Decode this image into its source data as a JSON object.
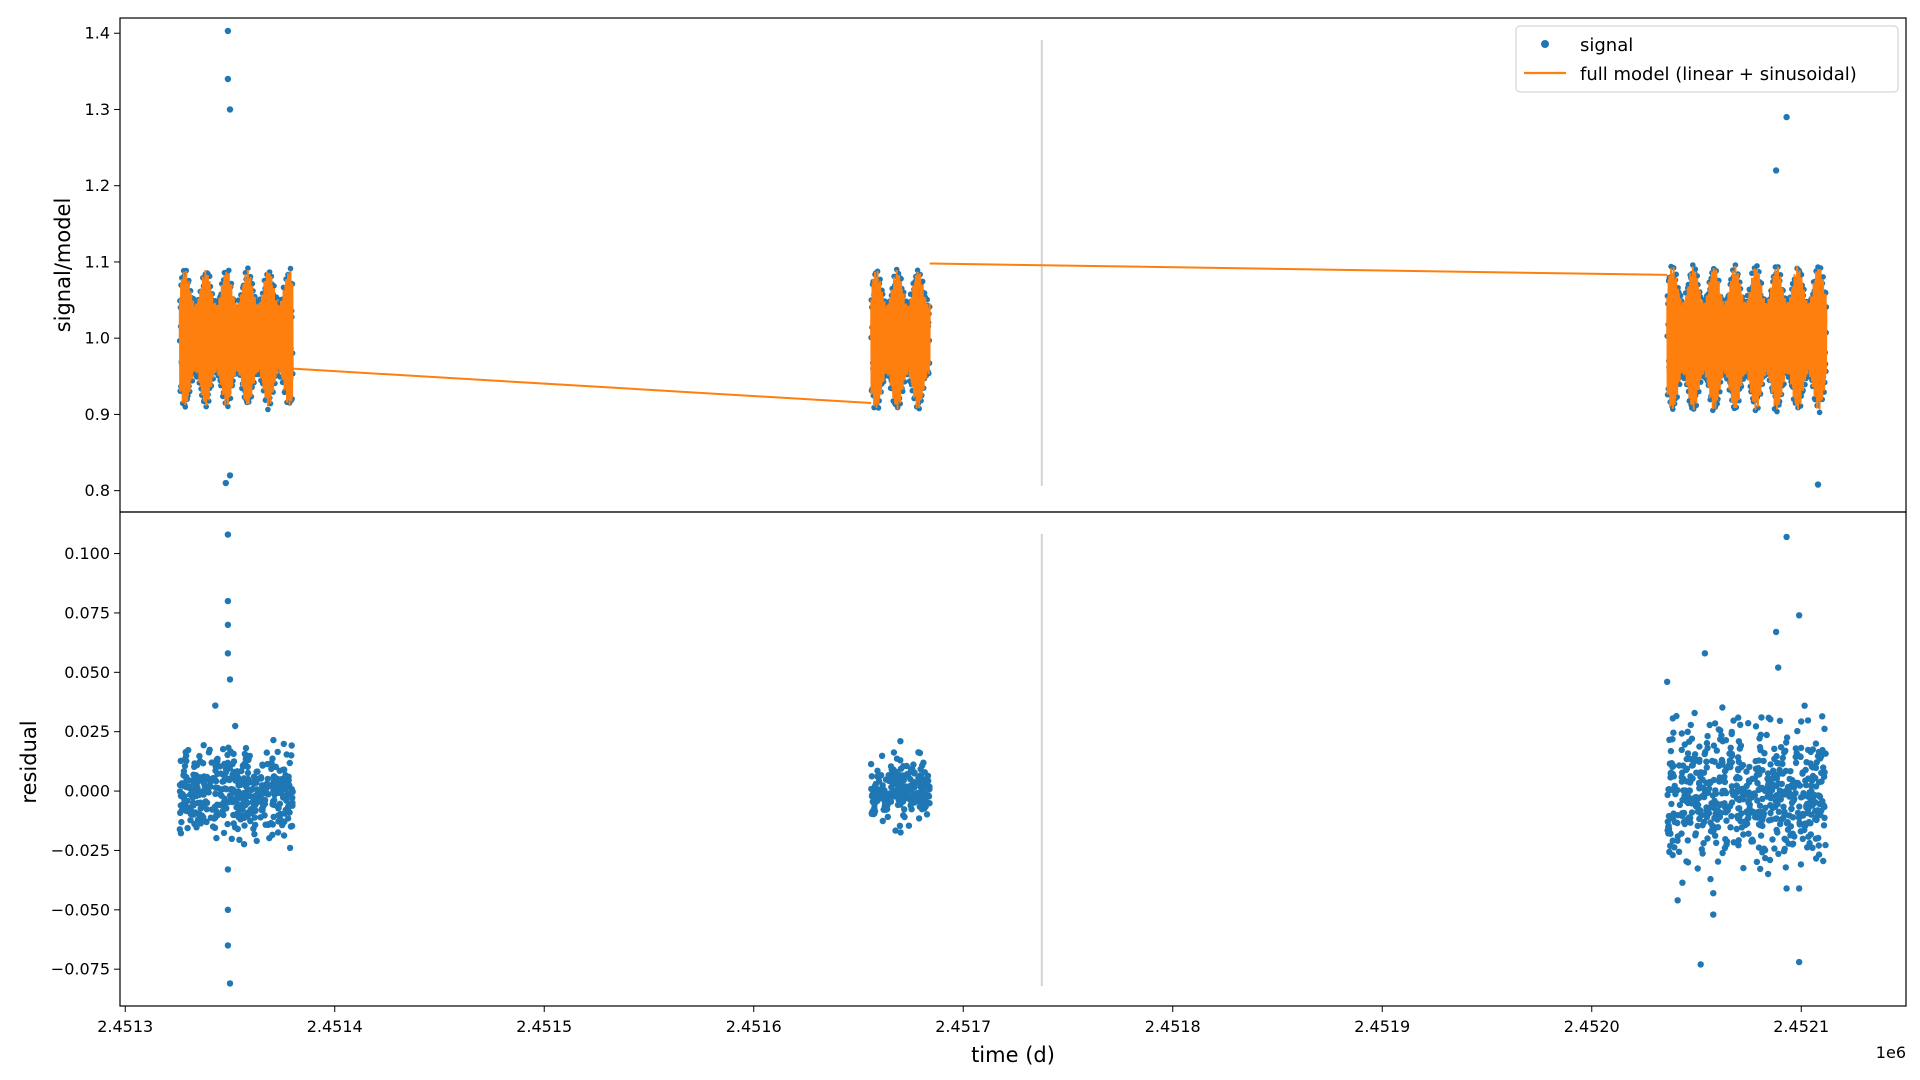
{
  "chart_data": {
    "type": "scatter",
    "figure": {
      "shared_x_label": "time (d)",
      "x_offset_label": "1e6",
      "x_ticks": [
        2451300,
        2451400,
        2451500,
        2451600,
        2451700,
        2451800,
        2451900,
        2452000,
        2452100
      ],
      "x_tick_labels": [
        "2.4513",
        "2.4514",
        "2.4515",
        "2.4516",
        "2.4517",
        "2.4518",
        "2.4519",
        "2.4520",
        "2.4521"
      ],
      "xlim": [
        2451297.5,
        2452150
      ],
      "vertical_marker_x": 2451737.5,
      "colors": {
        "signal": "#1f77b4",
        "model": "#ff7f0e",
        "marker": "#d3d3d3",
        "frame": "#000000"
      }
    },
    "panels": [
      {
        "id": "top",
        "ylabel": "signal/model",
        "ylim": [
          0.772,
          1.42
        ],
        "y_ticks": [
          0.8,
          0.9,
          1.0,
          1.1,
          1.2,
          1.3,
          1.4
        ],
        "y_tick_labels": [
          "0.8",
          "0.9",
          "1.0",
          "1.1",
          "1.2",
          "1.3",
          "1.4"
        ],
        "legend": {
          "placement": "top-right",
          "entries": [
            "signal",
            "full model (linear + sinusoidal)"
          ]
        },
        "segments": [
          {
            "x_start": 2451326,
            "x_end": 2451380,
            "center": 1.0,
            "amplitude": 0.09
          },
          {
            "x_start": 2451656,
            "x_end": 2451684,
            "center": 0.998,
            "amplitude": 0.092
          },
          {
            "x_start": 2452036,
            "x_end": 2452112,
            "center": 1.0,
            "amplitude": 0.095
          }
        ],
        "model_gap_lines": [
          {
            "x": [
              2451380,
              2451656
            ],
            "y": [
              0.96,
              0.915
            ]
          },
          {
            "x": [
              2451684,
              2452036
            ],
            "y": [
              1.098,
              1.083
            ]
          }
        ],
        "peaks": [
          {
            "x": 2451349,
            "y": 1.403
          },
          {
            "x": 2451349,
            "y": 1.34
          },
          {
            "x": 2451350,
            "y": 1.3
          },
          {
            "x": 2451348,
            "y": 0.81
          },
          {
            "x": 2451350,
            "y": 0.82
          },
          {
            "x": 2452093,
            "y": 1.29
          },
          {
            "x": 2452088,
            "y": 1.22
          },
          {
            "x": 2452108,
            "y": 0.808
          }
        ]
      },
      {
        "id": "bottom",
        "ylabel": "residual",
        "ylim": [
          -0.0905,
          0.1175
        ],
        "y_ticks": [
          -0.075,
          -0.05,
          -0.025,
          0.0,
          0.025,
          0.05,
          0.075,
          0.1
        ],
        "y_tick_labels": [
          "−0.075",
          "−0.050",
          "−0.025",
          "0.000",
          "0.025",
          "0.050",
          "0.075",
          "0.100"
        ],
        "segments": [
          {
            "x_start": 2451326,
            "x_end": 2451380,
            "spread": 0.009
          },
          {
            "x_start": 2451656,
            "x_end": 2451684,
            "spread": 0.006
          },
          {
            "x_start": 2452036,
            "x_end": 2452112,
            "spread": 0.014
          }
        ],
        "outliers": [
          {
            "x": 2451349,
            "y": 0.108
          },
          {
            "x": 2451349,
            "y": 0.08
          },
          {
            "x": 2451349,
            "y": 0.07
          },
          {
            "x": 2451349,
            "y": 0.058
          },
          {
            "x": 2451350,
            "y": 0.047
          },
          {
            "x": 2451349,
            "y": -0.05
          },
          {
            "x": 2451349,
            "y": -0.065
          },
          {
            "x": 2451350,
            "y": -0.081
          },
          {
            "x": 2451343,
            "y": 0.036
          },
          {
            "x": 2451349,
            "y": -0.033
          },
          {
            "x": 2452093,
            "y": 0.107
          },
          {
            "x": 2452099,
            "y": 0.074
          },
          {
            "x": 2452088,
            "y": 0.067
          },
          {
            "x": 2452052,
            "y": -0.073
          },
          {
            "x": 2452099,
            "y": -0.072
          },
          {
            "x": 2452054,
            "y": 0.058
          },
          {
            "x": 2452036,
            "y": 0.046
          },
          {
            "x": 2452041,
            "y": -0.046
          },
          {
            "x": 2452058,
            "y": -0.052
          },
          {
            "x": 2452058,
            "y": -0.043
          },
          {
            "x": 2452093,
            "y": -0.041
          },
          {
            "x": 2452099,
            "y": -0.041
          },
          {
            "x": 2452089,
            "y": 0.052
          },
          {
            "x": 2452081,
            "y": 0.031
          },
          {
            "x": 2451670,
            "y": 0.021
          }
        ]
      }
    ]
  }
}
